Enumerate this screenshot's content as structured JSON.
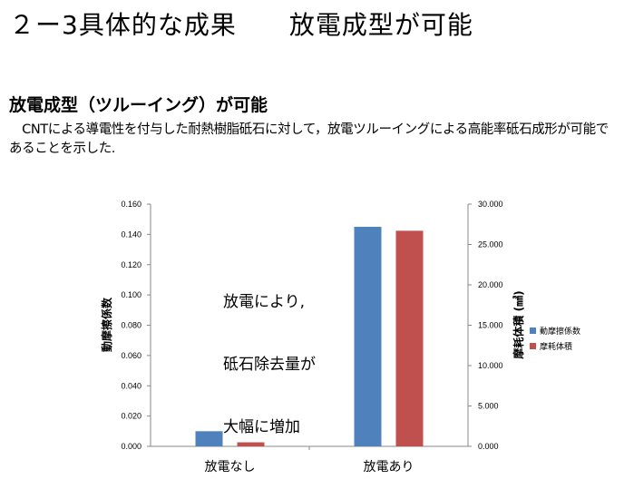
{
  "slide": {
    "title": "２ー3具体的な成果　　放電成型が可能",
    "section_title": "放電成型（ツルーイング）が可能",
    "body": "　CNTによる導電性を付与した耐熱樹脂砥石に対して，放電ツルーイングによる高能率砥石成形が可能であることを示した."
  },
  "annotation": {
    "lines": [
      "放電により,",
      "砥石除去量が",
      "大幅に増加"
    ]
  },
  "chart_data": {
    "type": "bar",
    "categories": [
      "放電なし",
      "放電あり"
    ],
    "series": [
      {
        "name": "動摩擦係数",
        "axis": "left",
        "color": "#4F81BD",
        "values": [
          0.01,
          0.145
        ]
      },
      {
        "name": "摩耗体積",
        "axis": "right",
        "color": "#C0504D",
        "values": [
          0.5,
          26.7
        ]
      }
    ],
    "y_left": {
      "label": "動摩擦係数",
      "ylim": [
        0,
        0.16
      ],
      "ticks": [
        "0.000",
        "0.020",
        "0.040",
        "0.060",
        "0.080",
        "0.100",
        "0.120",
        "0.140",
        "0.160"
      ]
    },
    "y_right": {
      "label": "摩耗体積 (㎣)",
      "ylim": [
        0,
        30
      ],
      "ticks": [
        "0.000",
        "5.000",
        "10.000",
        "15.000",
        "20.000",
        "25.000",
        "30.000"
      ]
    },
    "grid": false,
    "legend": "right"
  }
}
